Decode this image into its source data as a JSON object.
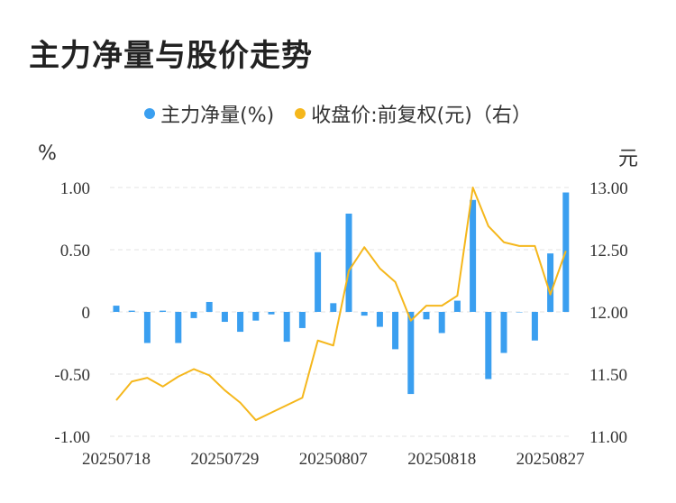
{
  "title": "主力净量与股价走势",
  "legend": [
    {
      "label": "主力净量(%)",
      "color": "#3a9ff0"
    },
    {
      "label": "收盘价:前复权(元)（右）",
      "color": "#f5b71c"
    }
  ],
  "chart_data": {
    "type": "bar+line",
    "left_unit": "%",
    "right_unit": "元",
    "left_ylim": [
      -1.0,
      1.0
    ],
    "right_ylim": [
      11.0,
      13.0
    ],
    "left_ticks": [
      "1.00",
      "0.50",
      "0",
      "-0.50",
      "-1.00"
    ],
    "right_ticks": [
      "13.00",
      "12.50",
      "12.00",
      "11.50",
      "11.00"
    ],
    "x_labels": [
      {
        "index": 0,
        "label": "20250718"
      },
      {
        "index": 7,
        "label": "20250729"
      },
      {
        "index": 14,
        "label": "20250807"
      },
      {
        "index": 21,
        "label": "20250818"
      },
      {
        "index": 28,
        "label": "20250827"
      }
    ],
    "grid": true,
    "series": [
      {
        "name": "主力净量(%)",
        "type": "bar",
        "axis": "left",
        "color": "#3a9ff0",
        "values": [
          0.05,
          0.01,
          -0.25,
          0.01,
          -0.25,
          -0.05,
          0.08,
          -0.08,
          -0.16,
          -0.07,
          -0.02,
          -0.24,
          -0.13,
          0.48,
          0.07,
          0.79,
          -0.03,
          -0.12,
          -0.3,
          -0.66,
          -0.06,
          -0.17,
          0.09,
          0.9,
          -0.54,
          -0.33,
          0.0,
          -0.23,
          0.47,
          0.96
        ]
      },
      {
        "name": "收盘价:前复权(元)（右）",
        "type": "line",
        "axis": "right",
        "color": "#f5b71c",
        "values": [
          11.29,
          11.44,
          11.47,
          11.4,
          11.48,
          11.54,
          11.49,
          11.37,
          11.27,
          11.13,
          11.19,
          11.25,
          11.31,
          11.77,
          11.73,
          12.33,
          12.52,
          12.35,
          12.24,
          11.93,
          12.05,
          12.05,
          12.13,
          13.0,
          12.69,
          12.56,
          12.53,
          12.53,
          12.14,
          12.49
        ]
      }
    ]
  }
}
